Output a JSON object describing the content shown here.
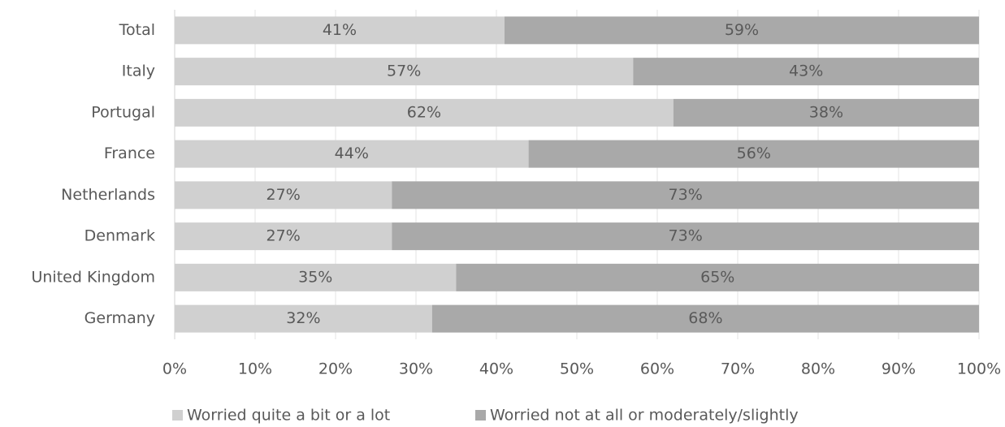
{
  "chart_data": {
    "type": "stacked-barh",
    "categories": [
      "Total",
      "Italy",
      "Portugal",
      "France",
      "Netherlands",
      "Denmark",
      "United Kingdom",
      "Germany"
    ],
    "series": [
      {
        "name": "Worried quite a bit or a lot",
        "color": "#d0d0d0",
        "values": [
          41,
          57,
          62,
          44,
          27,
          27,
          35,
          32
        ],
        "value_labels": [
          "41%",
          "57%",
          "62%",
          "44%",
          "27%",
          "27%",
          "35%",
          "32%"
        ]
      },
      {
        "name": "Worried not at all or moderately/slightly",
        "color": "#a9a9a9",
        "values": [
          59,
          43,
          38,
          56,
          73,
          73,
          65,
          68
        ],
        "value_labels": [
          "59%",
          "43%",
          "38%",
          "56%",
          "73%",
          "73%",
          "65%",
          "68%"
        ]
      }
    ],
    "xlim": [
      0,
      100
    ],
    "xticks": [
      {
        "value": 0,
        "label": "0%"
      },
      {
        "value": 10,
        "label": "10%"
      },
      {
        "value": 20,
        "label": "20%"
      },
      {
        "value": 30,
        "label": "30%"
      },
      {
        "value": 40,
        "label": "40%"
      },
      {
        "value": 50,
        "label": "50%"
      },
      {
        "value": 60,
        "label": "60%"
      },
      {
        "value": 70,
        "label": "70%"
      },
      {
        "value": 80,
        "label": "80%"
      },
      {
        "value": 90,
        "label": "90%"
      },
      {
        "value": 100,
        "label": "100%"
      }
    ],
    "grid": true
  }
}
